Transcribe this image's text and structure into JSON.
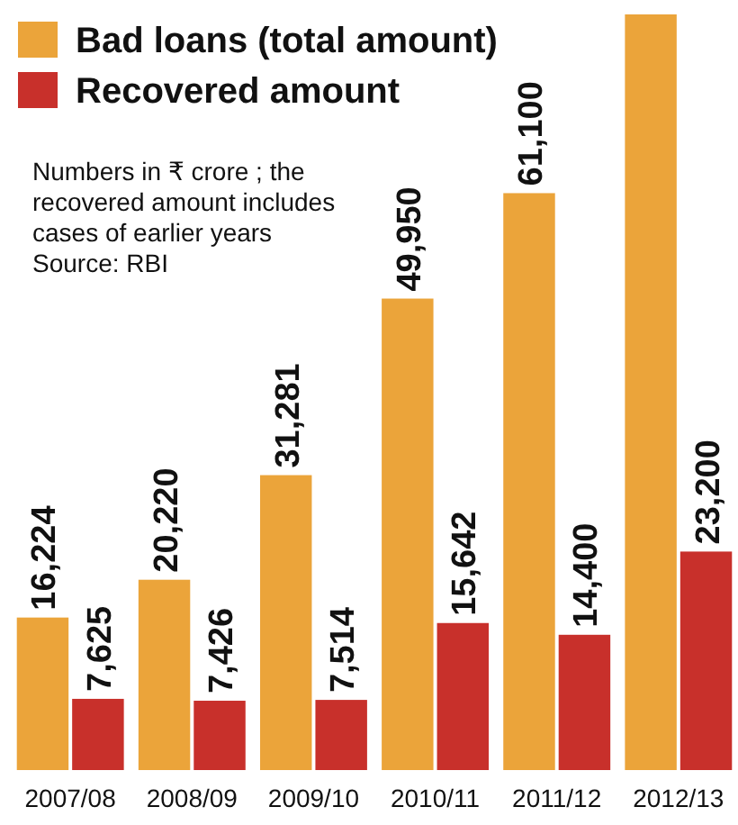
{
  "chart_data": {
    "type": "bar",
    "categories": [
      "2007/08",
      "2008/09",
      "2009/10",
      "2010/11",
      "2011/12",
      "2012/13"
    ],
    "series": [
      {
        "name": "Bad loans (total amount)",
        "color": "#eba43a",
        "values": [
          16224,
          20220,
          31281,
          49950,
          61100,
          80000
        ],
        "value_labels": [
          "16,224",
          "20,220",
          "31,281",
          "49,950",
          "61,100",
          null
        ]
      },
      {
        "name": "Recovered amount",
        "color": "#c8302b",
        "values": [
          7625,
          7426,
          7514,
          15642,
          14400,
          23200
        ],
        "value_labels": [
          "7,625",
          "7,426",
          "7,514",
          "15,642",
          "14,400",
          "23,200"
        ]
      }
    ],
    "legend": "top left",
    "annotations": [
      "Numbers in ₹ crore ; the",
      "recovered amount includes",
      "cases of earlier years",
      "Source: RBI"
    ]
  }
}
